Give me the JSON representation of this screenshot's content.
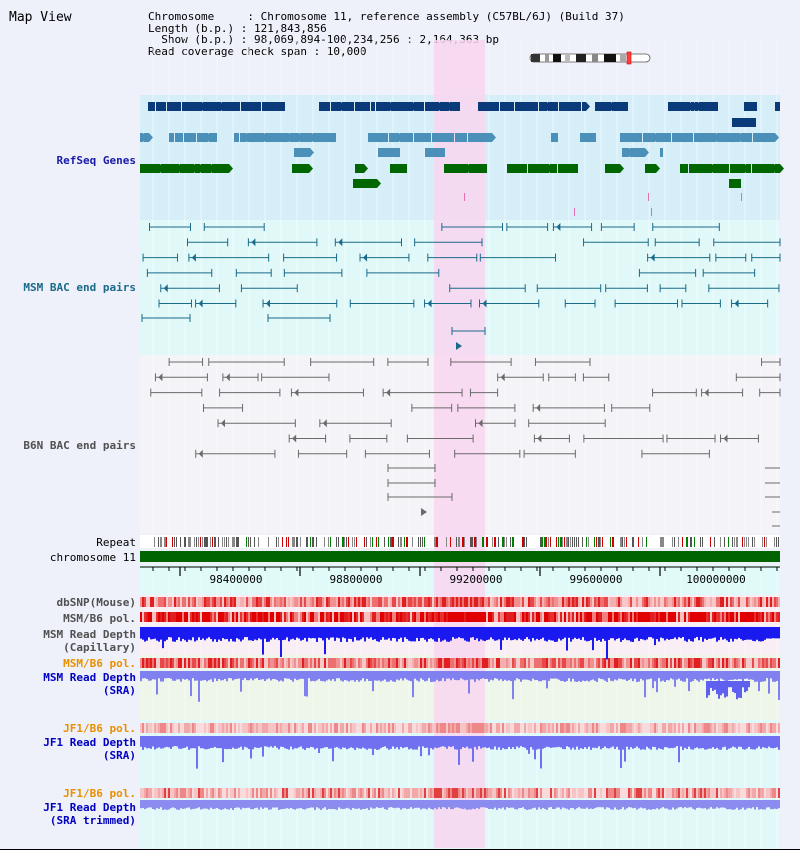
{
  "title": "Map View",
  "info": {
    "line1": "Chromosome     : Chromosome 11, reference assembly (C57BL/6J) (Build 37)",
    "line2": "Length (b.p.) : 121,843,856",
    "line3": "  Show (b.p.) : 98,069,894-100,234,256 : 2,164,363 bp",
    "line4": "Read coverage check span : 10,000"
  },
  "labels": {
    "refseq": "RefSeq Genes",
    "msm_bac": "MSM BAC end pairs",
    "b6n_bac": "B6N BAC end pairs",
    "repeat": "Repeat",
    "chromosome": "chromosome 11",
    "dbsnp": "dbSNP(Mouse)",
    "msm_b6_pol_1": "MSM/B6 pol.",
    "msm_depth_cap_1": "MSM Read Depth",
    "msm_depth_cap_2": "(Capillary)",
    "msm_b6_pol_2": "MSM/B6 pol.",
    "msm_depth_sra_1": "MSM Read Depth",
    "msm_depth_sra_2": "(SRA)",
    "jf1_b6_pol_1": "JF1/B6 pol.",
    "jf1_depth_sra_1": "JF1 Read Depth",
    "jf1_depth_sra_2": "(SRA)",
    "jf1_b6_pol_2": "JF1/B6 pol.",
    "jf1_depth_trim_1": "JF1 Read Depth",
    "jf1_depth_trim_2": "(SRA trimmed)"
  },
  "axis": {
    "ticks": [
      "98400000",
      "98800000",
      "99200000",
      "99600000",
      "100000000"
    ]
  },
  "colors": {
    "refseq_label": "#1a1aa8",
    "bac_label": "#1a6a8a",
    "b6n_label": "#505050",
    "orange_label": "#e89000",
    "blue_label": "#0000c0",
    "highlight": "#f8d6f0",
    "chromosome": "#006400"
  }
}
